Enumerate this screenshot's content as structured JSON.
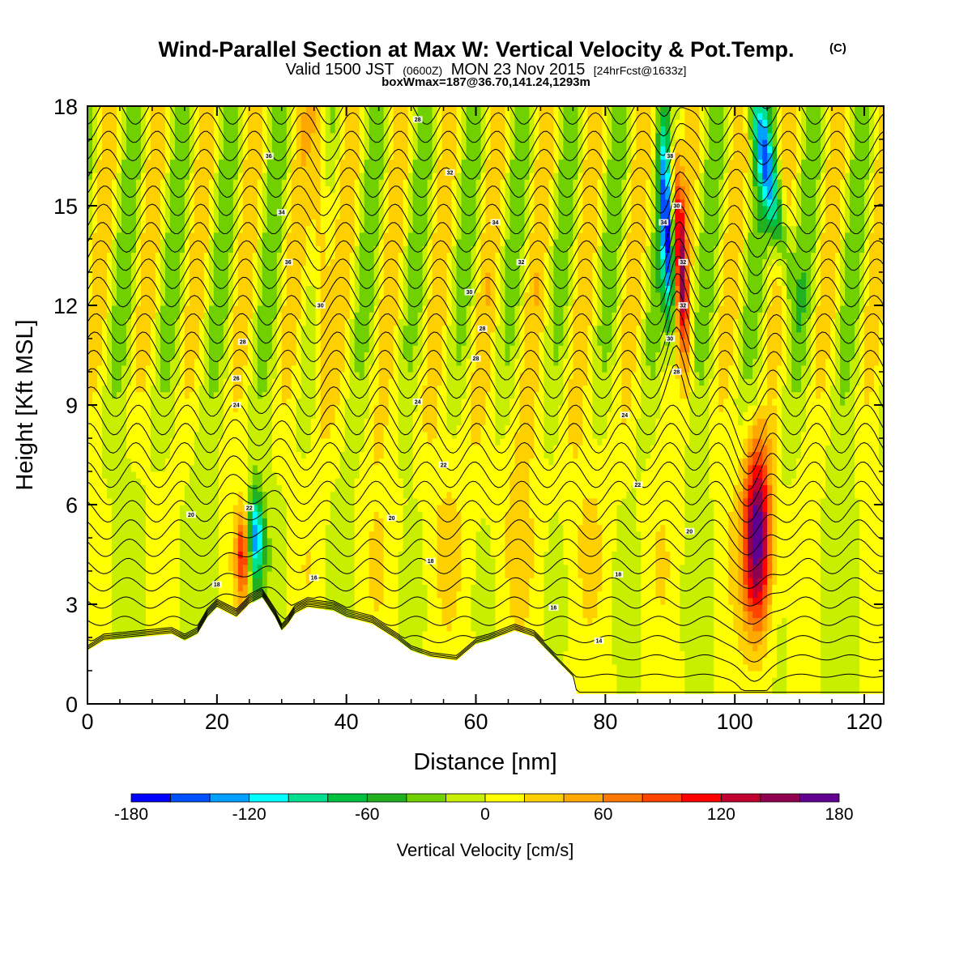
{
  "title": {
    "main": "Wind-Parallel Section at Max W: Vertical Velocity & Pot.Temp.",
    "mark": "(C)",
    "valid_prefix": "Valid 1500 JST",
    "valid_z": "(0600Z)",
    "valid_date": "MON 23 Nov 2015",
    "forecast": "[24hrFcst@1633z]",
    "boxwmax": "boxWmax=187@36.70,141.24,1293m"
  },
  "chart_data": {
    "type": "heatmap",
    "xlabel": "Distance [nm]",
    "ylabel": "Height [Kft MSL]",
    "xlim": [
      0,
      123
    ],
    "ylim": [
      0,
      18
    ],
    "x_ticks": [
      "0",
      "20",
      "40",
      "60",
      "80",
      "100",
      "120"
    ],
    "x_tick_values": [
      0,
      20,
      40,
      60,
      80,
      100,
      120
    ],
    "y_ticks": [
      "0",
      "3",
      "6",
      "9",
      "12",
      "15",
      "18"
    ],
    "y_tick_values": [
      0,
      3,
      6,
      9,
      12,
      15,
      18
    ],
    "grid": false,
    "colorbar": {
      "label": "Vertical Velocity [cm/s]",
      "min": -180,
      "max": 180,
      "step": 20,
      "tick_labels": [
        "-180",
        "-120",
        "-60",
        "0",
        "60",
        "120",
        "180"
      ],
      "tick_values": [
        -180,
        -120,
        -60,
        0,
        60,
        120,
        180
      ],
      "colors": [
        "#0000ff",
        "#0050ff",
        "#00a0ff",
        "#00ffff",
        "#00e090",
        "#00c040",
        "#20b020",
        "#70d000",
        "#c8ee00",
        "#ffff00",
        "#ffd000",
        "#ffa800",
        "#ff7800",
        "#ff4400",
        "#ff0000",
        "#c00030",
        "#900050",
        "#600090"
      ]
    },
    "terrain_kft": [
      [
        0,
        1.6
      ],
      [
        2.5,
        1.9
      ],
      [
        13,
        2.1
      ],
      [
        15,
        1.9
      ],
      [
        17,
        2.1
      ],
      [
        18.5,
        2.6
      ],
      [
        20,
        2.9
      ],
      [
        23,
        2.6
      ],
      [
        25,
        3.0
      ],
      [
        27,
        3.2
      ],
      [
        29,
        2.6
      ],
      [
        30,
        2.2
      ],
      [
        31,
        2.4
      ],
      [
        32,
        2.7
      ],
      [
        34,
        2.9
      ],
      [
        38,
        2.8
      ],
      [
        40,
        2.6
      ],
      [
        44,
        2.4
      ],
      [
        48,
        1.9
      ],
      [
        50,
        1.6
      ],
      [
        53,
        1.4
      ],
      [
        57,
        1.3
      ],
      [
        60,
        1.8
      ],
      [
        62,
        1.9
      ],
      [
        66,
        2.2
      ],
      [
        69,
        2.0
      ],
      [
        71,
        1.6
      ],
      [
        73,
        1.2
      ],
      [
        75,
        0.8
      ],
      [
        75.6,
        0.3
      ],
      [
        123,
        0.3
      ]
    ],
    "w_features": [
      {
        "x": 103.5,
        "z": 5.0,
        "amp": 187
      },
      {
        "x": 92.0,
        "z": 12.5,
        "amp": 120
      },
      {
        "x": 89.5,
        "z": 14.0,
        "amp": -150
      },
      {
        "x": 26.0,
        "z": 5.0,
        "amp": -130
      },
      {
        "x": 24.0,
        "z": 4.5,
        "amp": 100
      },
      {
        "x": 106.0,
        "z": 15.5,
        "amp": -120
      },
      {
        "x": 36.0,
        "z": 14.5,
        "amp": 60
      }
    ],
    "theta_labels": [
      {
        "text": "28",
        "x": 51,
        "z": 17.6
      },
      {
        "text": "36",
        "x": 28,
        "z": 16.5
      },
      {
        "text": "32",
        "x": 56,
        "z": 16.0
      },
      {
        "text": "38",
        "x": 90,
        "z": 16.5
      },
      {
        "text": "34",
        "x": 30,
        "z": 14.8
      },
      {
        "text": "30",
        "x": 91,
        "z": 15.0
      },
      {
        "text": "34",
        "x": 63,
        "z": 14.5
      },
      {
        "text": "34",
        "x": 89,
        "z": 14.5
      },
      {
        "text": "32",
        "x": 67,
        "z": 13.3
      },
      {
        "text": "36",
        "x": 31,
        "z": 13.3
      },
      {
        "text": "32",
        "x": 92,
        "z": 13.3
      },
      {
        "text": "30",
        "x": 59,
        "z": 12.4
      },
      {
        "text": "32",
        "x": 92,
        "z": 12.0
      },
      {
        "text": "30",
        "x": 36,
        "z": 12.0
      },
      {
        "text": "28",
        "x": 61,
        "z": 11.3
      },
      {
        "text": "28",
        "x": 24,
        "z": 10.9
      },
      {
        "text": "30",
        "x": 90,
        "z": 11.0
      },
      {
        "text": "28",
        "x": 60,
        "z": 10.4
      },
      {
        "text": "26",
        "x": 23,
        "z": 9.8
      },
      {
        "text": "28",
        "x": 91,
        "z": 10.0
      },
      {
        "text": "24",
        "x": 23,
        "z": 9.0
      },
      {
        "text": "24",
        "x": 51,
        "z": 9.1
      },
      {
        "text": "24",
        "x": 83,
        "z": 8.7
      },
      {
        "text": "22",
        "x": 55,
        "z": 7.2
      },
      {
        "text": "22",
        "x": 85,
        "z": 6.6
      },
      {
        "text": "22",
        "x": 25,
        "z": 5.9
      },
      {
        "text": "20",
        "x": 16,
        "z": 5.7
      },
      {
        "text": "20",
        "x": 47,
        "z": 5.6
      },
      {
        "text": "20",
        "x": 93,
        "z": 5.2
      },
      {
        "text": "18",
        "x": 53,
        "z": 4.3
      },
      {
        "text": "18",
        "x": 82,
        "z": 3.9
      },
      {
        "text": "18",
        "x": 20,
        "z": 3.6
      },
      {
        "text": "16",
        "x": 35,
        "z": 3.8
      },
      {
        "text": "16",
        "x": 72,
        "z": 2.9
      },
      {
        "text": "14",
        "x": 79,
        "z": 1.9
      }
    ]
  }
}
